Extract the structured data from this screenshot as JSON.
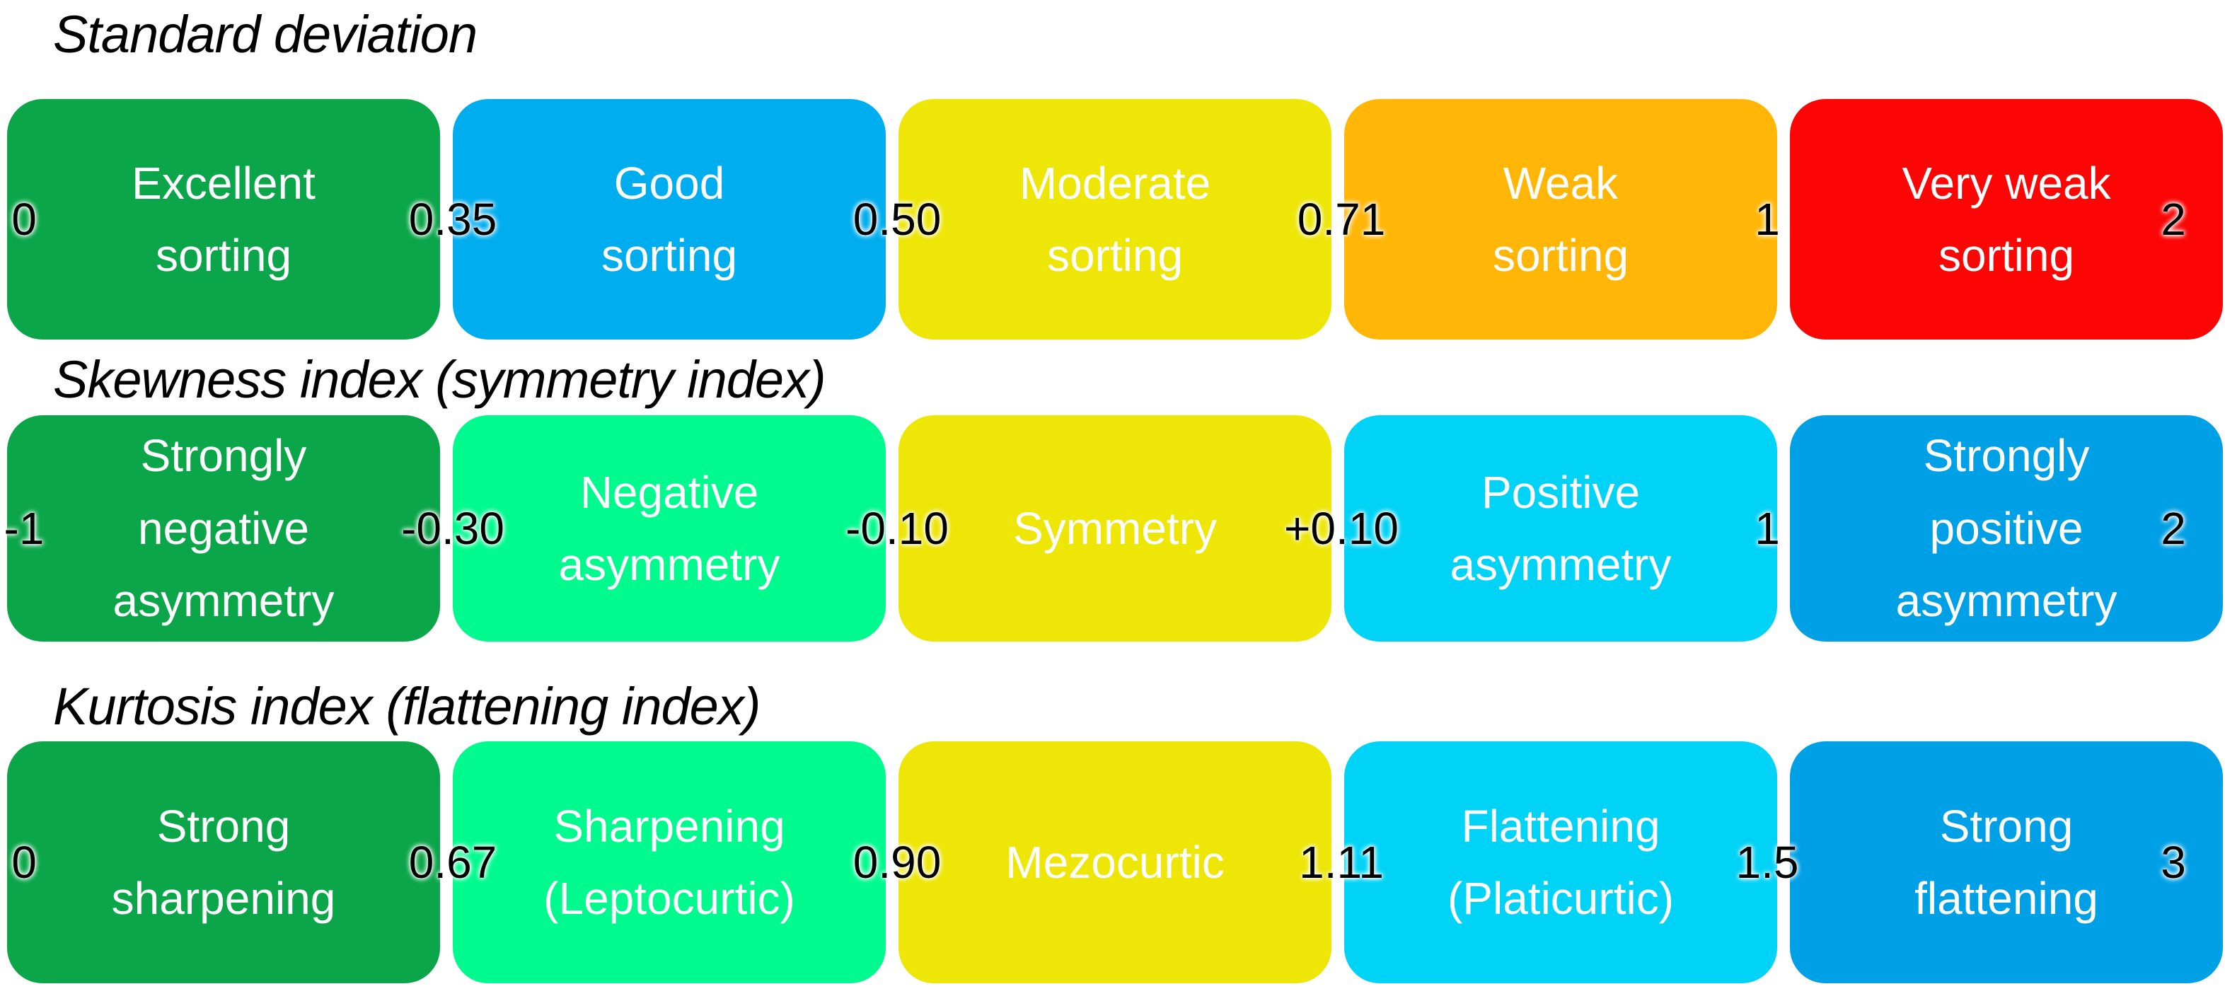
{
  "colors": {
    "green": "#0CA64A",
    "spring_green": "#00FA8E",
    "yellow": "#EDE607",
    "orange": "#FFB606",
    "red": "#FB0505",
    "azure_blue": "#00AEEF",
    "cyan": "#00D3F5",
    "deep_blue": "#00A0E6",
    "label_text": "#FFFFFF",
    "value_text": "#000000",
    "title_text": "#000000",
    "background": "#FFFFFF"
  },
  "scales": [
    {
      "title": "Standard deviation",
      "boxes": [
        {
          "label": "Excellent\nsorting",
          "color": "#0CA64A"
        },
        {
          "label": "Good\nsorting",
          "color": "#00AEEF"
        },
        {
          "label": "Moderate\nsorting",
          "color": "#EDE607"
        },
        {
          "label": "Weak\nsorting",
          "color": "#FFB606"
        },
        {
          "label": "Very weak\nsorting",
          "color": "#FB0505"
        }
      ],
      "values": [
        {
          "text": "0"
        },
        {
          "text": "0.35"
        },
        {
          "text": "0.50"
        },
        {
          "text": "0.71"
        },
        {
          "text": "1"
        },
        {
          "text": "2"
        }
      ]
    },
    {
      "title": "Skewness index (symmetry index)",
      "boxes": [
        {
          "label": "Strongly\nnegative\nasymmetry",
          "color": "#0CA64A"
        },
        {
          "label": "Negative\nasymmetry",
          "color": "#00FA8E"
        },
        {
          "label": "Symmetry",
          "color": "#EDE607"
        },
        {
          "label": "Positive\nasymmetry",
          "color": "#00D3F5"
        },
        {
          "label": "Strongly\npositive\nasymmetry",
          "color": "#00A0E6"
        }
      ],
      "values": [
        {
          "text": "-1"
        },
        {
          "text": "-0.30"
        },
        {
          "text": "-0.10"
        },
        {
          "text": "+0.10"
        },
        {
          "text": "1"
        },
        {
          "text": "2"
        }
      ]
    },
    {
      "title": "Kurtosis index (flattening index)",
      "boxes": [
        {
          "label": "Strong\nsharpening",
          "color": "#0CA64A"
        },
        {
          "label": "Sharpening\n(Leptocurtic)",
          "color": "#00FA8E"
        },
        {
          "label": "Mezocurtic",
          "color": "#EDE607"
        },
        {
          "label": "Flattening\n(Platicurtic)",
          "color": "#00D3F5"
        },
        {
          "label": "Strong\nflattening",
          "color": "#00A0E6"
        }
      ],
      "values": [
        {
          "text": "0"
        },
        {
          "text": "0.67"
        },
        {
          "text": "0.90"
        },
        {
          "text": "1.11"
        },
        {
          "text": "1.5"
        },
        {
          "text": "3"
        }
      ]
    }
  ]
}
